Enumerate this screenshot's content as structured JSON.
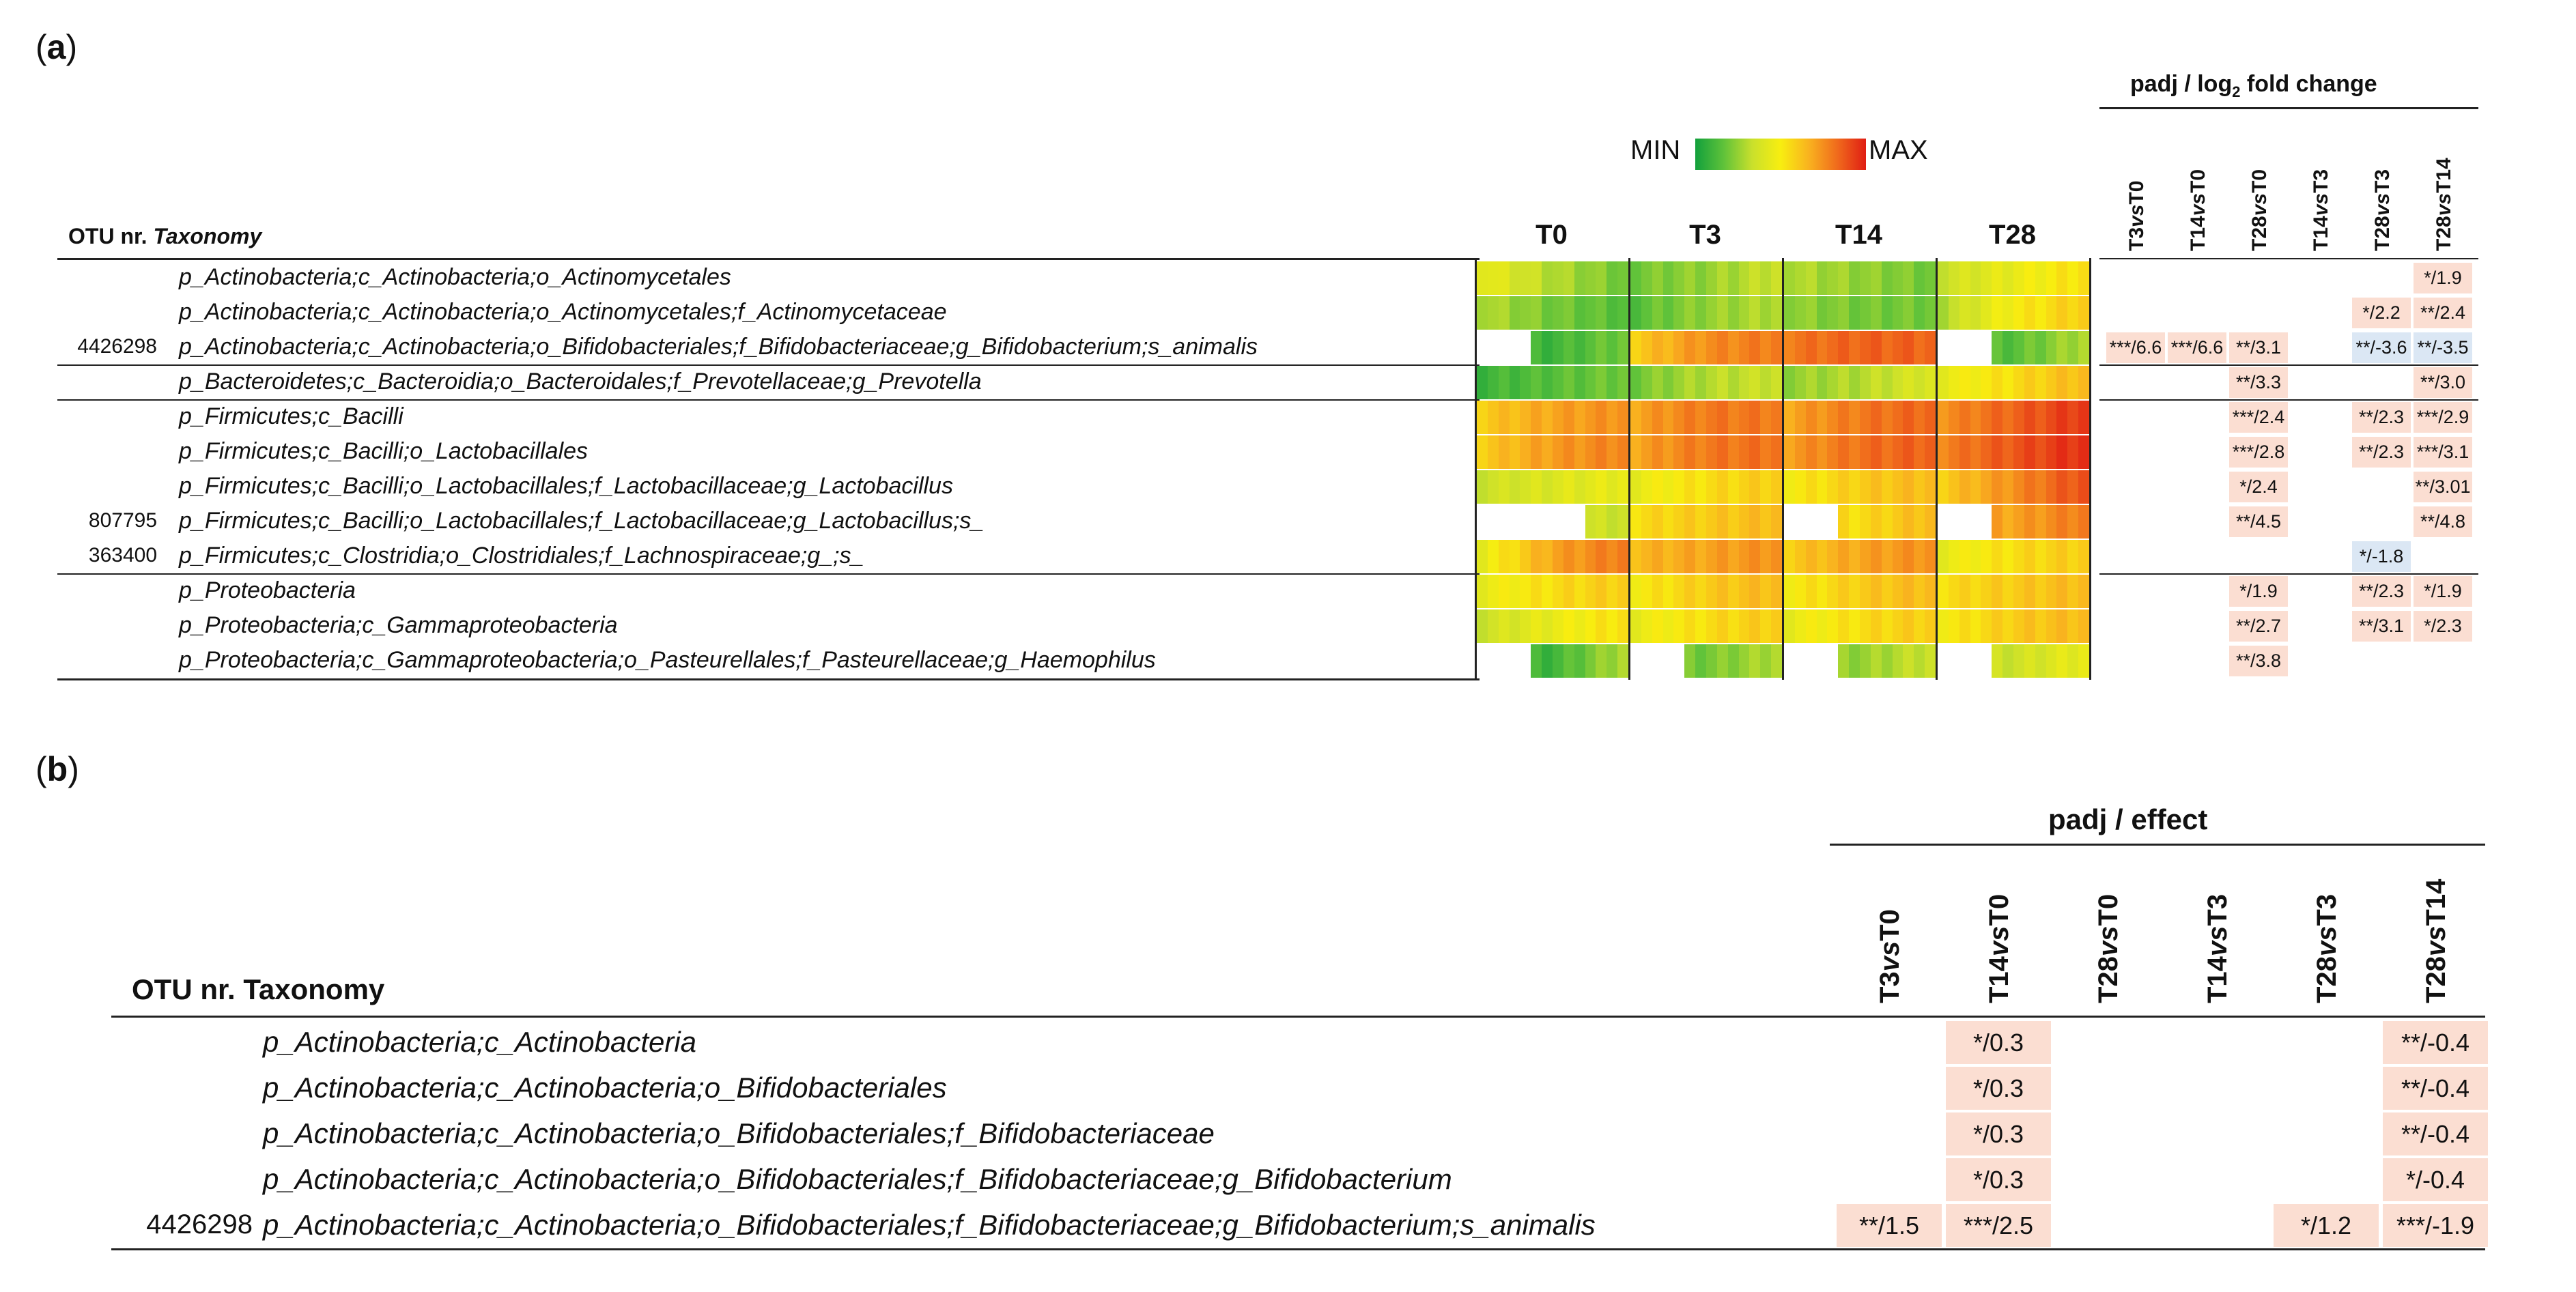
{
  "panel_a": {
    "label_open": "(",
    "label_letter": "a",
    "label_close": ")",
    "legend": {
      "min": "MIN",
      "max": "MAX",
      "colors": [
        "#12a03c",
        "#5fc23a",
        "#c9e02c",
        "#f8ee10",
        "#f9b21f",
        "#f06a1c",
        "#e01e14"
      ]
    },
    "otu_header": "OTU nr.",
    "taxonomy_header": "Taxonomy",
    "timepoints": [
      "T0",
      "T3",
      "T14",
      "T28"
    ],
    "padj_title_1": "padj / log",
    "padj_title_sub": "2",
    "padj_title_2": " fold change",
    "comparisons": [
      {
        "a": "T3",
        "vs": "vs",
        "b": "T0"
      },
      {
        "a": "T14",
        "vs": "vs",
        "b": "T0"
      },
      {
        "a": "T28",
        "vs": "vs",
        "b": "T0"
      },
      {
        "a": "T14",
        "vs": "vs",
        "b": "T3"
      },
      {
        "a": "T28",
        "vs": "vs",
        "b": "T3"
      },
      {
        "a": "T28",
        "vs": "vs",
        "b": "T14"
      }
    ],
    "rows": [
      {
        "otu": "",
        "taxonomy": "p_Actinobacteria;c_Actinobacteria;o_Actinomycetales",
        "cells": [
          "",
          "",
          "",
          "",
          "",
          "*/1.9"
        ],
        "signs": [
          "",
          "",
          "",
          "",
          "",
          "+"
        ],
        "heat": [
          [
            0.45,
            0.3,
            0.2
          ],
          [
            0.2,
            0.25,
            0.35
          ],
          [
            0.3,
            0.25,
            0.2
          ],
          [
            0.35,
            0.45,
            0.55
          ]
        ]
      },
      {
        "otu": "",
        "taxonomy": "p_Actinobacteria;c_Actinobacteria;o_Actinomycetales;f_Actinomycetaceae",
        "cells": [
          "",
          "",
          "",
          "",
          "*/2.2",
          "**/2.4"
        ],
        "signs": [
          "",
          "",
          "",
          "",
          "+",
          "+"
        ],
        "heat": [
          [
            0.3,
            0.2,
            0.15
          ],
          [
            0.15,
            0.25,
            0.3
          ],
          [
            0.25,
            0.2,
            0.2
          ],
          [
            0.3,
            0.5,
            0.6
          ]
        ]
      },
      {
        "otu": "4426298",
        "taxonomy": "p_Actinobacteria;c_Actinobacteria;o_Bifidobacteriales;f_Bifidobacteriaceae;g_Bifidobacterium;s_animalis",
        "cells": [
          "***/6.6",
          "***/6.6",
          "**/3.1",
          "",
          "**/-3.6",
          "**/-3.5"
        ],
        "signs": [
          "+",
          "+",
          "+",
          "",
          "-",
          "-"
        ],
        "heat": [
          [
            -1,
            0.1,
            0.2
          ],
          [
            0.6,
            0.75,
            0.8
          ],
          [
            0.8,
            0.85,
            0.85
          ],
          [
            -1,
            0.15,
            0.3
          ]
        ]
      },
      {
        "otu": "",
        "taxonomy": "p_Bacteroidetes;c_Bacteroidia;o_Bacteroidales;f_Prevotellaceae;g_Prevotella",
        "cells": [
          "",
          "",
          "**/3.3",
          "",
          "",
          "**/3.0"
        ],
        "signs": [
          "",
          "",
          "+",
          "",
          "",
          "+"
        ],
        "heat": [
          [
            0.1,
            0.15,
            0.2
          ],
          [
            0.2,
            0.3,
            0.35
          ],
          [
            0.25,
            0.3,
            0.4
          ],
          [
            0.45,
            0.55,
            0.65
          ]
        ]
      },
      {
        "otu": "",
        "taxonomy": "p_Firmicutes;c_Bacilli",
        "cells": [
          "",
          "",
          "***/2.4",
          "",
          "**/2.3",
          "***/2.9"
        ],
        "signs": [
          "",
          "",
          "+",
          "",
          "+",
          "+"
        ],
        "heat": [
          [
            0.6,
            0.7,
            0.75
          ],
          [
            0.7,
            0.8,
            0.8
          ],
          [
            0.7,
            0.8,
            0.85
          ],
          [
            0.75,
            0.85,
            0.95
          ]
        ]
      },
      {
        "otu": "",
        "taxonomy": "p_Firmicutes;c_Bacilli;o_Lactobacillales",
        "cells": [
          "",
          "",
          "***/2.8",
          "",
          "**/2.3",
          "***/3.1"
        ],
        "signs": [
          "",
          "",
          "+",
          "",
          "+",
          "+"
        ],
        "heat": [
          [
            0.6,
            0.72,
            0.78
          ],
          [
            0.7,
            0.8,
            0.82
          ],
          [
            0.72,
            0.82,
            0.86
          ],
          [
            0.78,
            0.88,
            0.97
          ]
        ]
      },
      {
        "otu": "",
        "taxonomy": "p_Firmicutes;c_Bacilli;o_Lactobacillales;f_Lactobacillaceae;g_Lactobacillus",
        "cells": [
          "",
          "",
          "*/2.4",
          "",
          "",
          "**/3.01"
        ],
        "signs": [
          "",
          "",
          "+",
          "",
          "",
          "+"
        ],
        "heat": [
          [
            0.35,
            0.4,
            0.45
          ],
          [
            0.45,
            0.55,
            0.6
          ],
          [
            0.5,
            0.6,
            0.65
          ],
          [
            0.6,
            0.75,
            0.9
          ]
        ]
      },
      {
        "otu": "807795",
        "taxonomy": "p_Firmicutes;c_Bacilli;o_Lactobacillales;f_Lactobacillaceae;g_Lactobacillus;s_",
        "cells": [
          "",
          "",
          "**/4.5",
          "",
          "",
          "**/4.8"
        ],
        "signs": [
          "",
          "",
          "+",
          "",
          "",
          "+"
        ],
        "heat": [
          [
            -1,
            -1,
            0.35
          ],
          [
            0.55,
            0.6,
            0.65
          ],
          [
            -1,
            0.55,
            0.65
          ],
          [
            -1,
            0.7,
            0.8
          ]
        ]
      },
      {
        "otu": "363400",
        "taxonomy": "p_Firmicutes;c_Clostridia;o_Clostridiales;f_Lachnospiraceae;g_;s_",
        "cells": [
          "",
          "",
          "",
          "",
          "*/-1.8",
          ""
        ],
        "signs": [
          "",
          "",
          "",
          "",
          "-",
          ""
        ],
        "heat": [
          [
            0.45,
            0.7,
            0.8
          ],
          [
            0.65,
            0.7,
            0.75
          ],
          [
            0.6,
            0.7,
            0.75
          ],
          [
            0.45,
            0.55,
            0.6
          ]
        ]
      },
      {
        "otu": "",
        "taxonomy": "p_Proteobacteria",
        "cells": [
          "",
          "",
          "*/1.9",
          "",
          "**/2.3",
          "*/1.9"
        ],
        "signs": [
          "",
          "",
          "+",
          "",
          "+",
          "+"
        ],
        "heat": [
          [
            0.45,
            0.55,
            0.6
          ],
          [
            0.5,
            0.6,
            0.65
          ],
          [
            0.5,
            0.6,
            0.65
          ],
          [
            0.55,
            0.6,
            0.65
          ]
        ]
      },
      {
        "otu": "",
        "taxonomy": "p_Proteobacteria;c_Gammaproteobacteria",
        "cells": [
          "",
          "",
          "**/2.7",
          "",
          "**/3.1",
          "*/2.3"
        ],
        "signs": [
          "",
          "",
          "+",
          "",
          "+",
          "+"
        ],
        "heat": [
          [
            0.35,
            0.45,
            0.55
          ],
          [
            0.45,
            0.55,
            0.6
          ],
          [
            0.45,
            0.55,
            0.6
          ],
          [
            0.5,
            0.6,
            0.65
          ]
        ]
      },
      {
        "otu": "",
        "taxonomy": "p_Proteobacteria;c_Gammaproteobacteria;o_Pasteurellales;f_Pasteurellaceae;g_Haemophilus",
        "cells": [
          "",
          "",
          "**/3.8",
          "",
          "",
          ""
        ],
        "signs": [
          "",
          "",
          "+",
          "",
          "",
          ""
        ],
        "heat": [
          [
            -1,
            0.1,
            0.3
          ],
          [
            -1,
            0.2,
            0.3
          ],
          [
            -1,
            0.25,
            0.35
          ],
          [
            -1,
            0.35,
            0.45
          ]
        ]
      }
    ]
  },
  "panel_b": {
    "label_open": "(",
    "label_letter": "b",
    "label_close": ")",
    "otu_header": "OTU nr.",
    "taxonomy_header": "Taxonomy",
    "padj_title": "padj / effect",
    "comparisons": [
      {
        "a": "T3",
        "vs": "vs",
        "b": "T0"
      },
      {
        "a": "T14",
        "vs": "vs",
        "b": "T0"
      },
      {
        "a": "T28",
        "vs": "vs",
        "b": "T0"
      },
      {
        "a": "T14",
        "vs": "vs",
        "b": "T3"
      },
      {
        "a": "T28",
        "vs": "vs",
        "b": "T3"
      },
      {
        "a": "T28",
        "vs": "vs",
        "b": "T14"
      }
    ],
    "rows": [
      {
        "otu": "",
        "taxonomy": "p_Actinobacteria;c_Actinobacteria",
        "cells": [
          "",
          "*/0.3",
          "",
          "",
          "",
          "**/-0.4"
        ]
      },
      {
        "otu": "",
        "taxonomy": "p_Actinobacteria;c_Actinobacteria;o_Bifidobacteriales",
        "cells": [
          "",
          "*/0.3",
          "",
          "",
          "",
          "**/-0.4"
        ]
      },
      {
        "otu": "",
        "taxonomy": "p_Actinobacteria;c_Actinobacteria;o_Bifidobacteriales;f_Bifidobacteriaceae",
        "cells": [
          "",
          "*/0.3",
          "",
          "",
          "",
          "**/-0.4"
        ]
      },
      {
        "otu": "",
        "taxonomy": "p_Actinobacteria;c_Actinobacteria;o_Bifidobacteriales;f_Bifidobacteriaceae;g_Bifidobacterium",
        "cells": [
          "",
          "*/0.3",
          "",
          "",
          "",
          "*/-0.4"
        ]
      },
      {
        "otu": "4426298",
        "taxonomy": "p_Actinobacteria;c_Actinobacteria;o_Bifidobacteriales;f_Bifidobacteriaceae;g_Bifidobacterium;s_animalis",
        "cells": [
          "**/1.5",
          "***/2.5",
          "",
          "",
          "*/1.2",
          "***/-1.9"
        ]
      }
    ]
  }
}
